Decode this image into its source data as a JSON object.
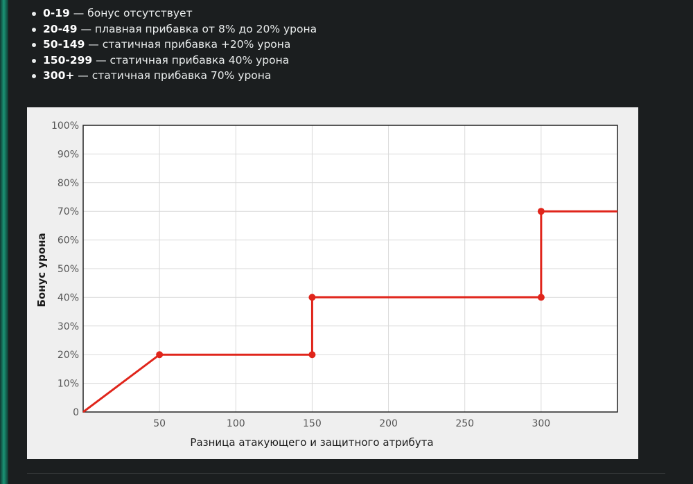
{
  "bullets": [
    {
      "range": "0-19",
      "text": " — бонус отсутствует"
    },
    {
      "range": "20-49",
      "text": " — плавная прибавка от 8% до 20% урона"
    },
    {
      "range": "50-149",
      "text": " — статичная прибавка +20% урона"
    },
    {
      "range": "150-299",
      "text": " — статичная прибавка 40% урона"
    },
    {
      "range": "300+",
      "text": " — статичная прибавка 70% урона"
    }
  ],
  "chart_data": {
    "type": "line",
    "xlabel": "Разница атакующего и защитного атрибута",
    "ylabel": "Бонус урона",
    "xlim": [
      0,
      350
    ],
    "ylim": [
      0,
      100
    ],
    "x_ticks": [
      50,
      100,
      150,
      200,
      250,
      300
    ],
    "y_ticks": [
      0,
      10,
      20,
      30,
      40,
      50,
      60,
      70,
      80,
      90,
      100
    ],
    "y_tick_labels": [
      "0",
      "10%",
      "20%",
      "30%",
      "40%",
      "50%",
      "60%",
      "70%",
      "80%",
      "90%",
      "100%"
    ],
    "grid": true,
    "color": "#e0251b",
    "series": [
      {
        "points": [
          [
            0,
            0
          ],
          [
            50,
            20
          ],
          [
            150,
            20
          ],
          [
            150,
            40
          ],
          [
            300,
            40
          ],
          [
            300,
            70
          ],
          [
            350,
            70
          ]
        ],
        "markers": [
          [
            50,
            20
          ],
          [
            150,
            20
          ],
          [
            150,
            40
          ],
          [
            300,
            40
          ],
          [
            300,
            70
          ]
        ]
      }
    ]
  }
}
